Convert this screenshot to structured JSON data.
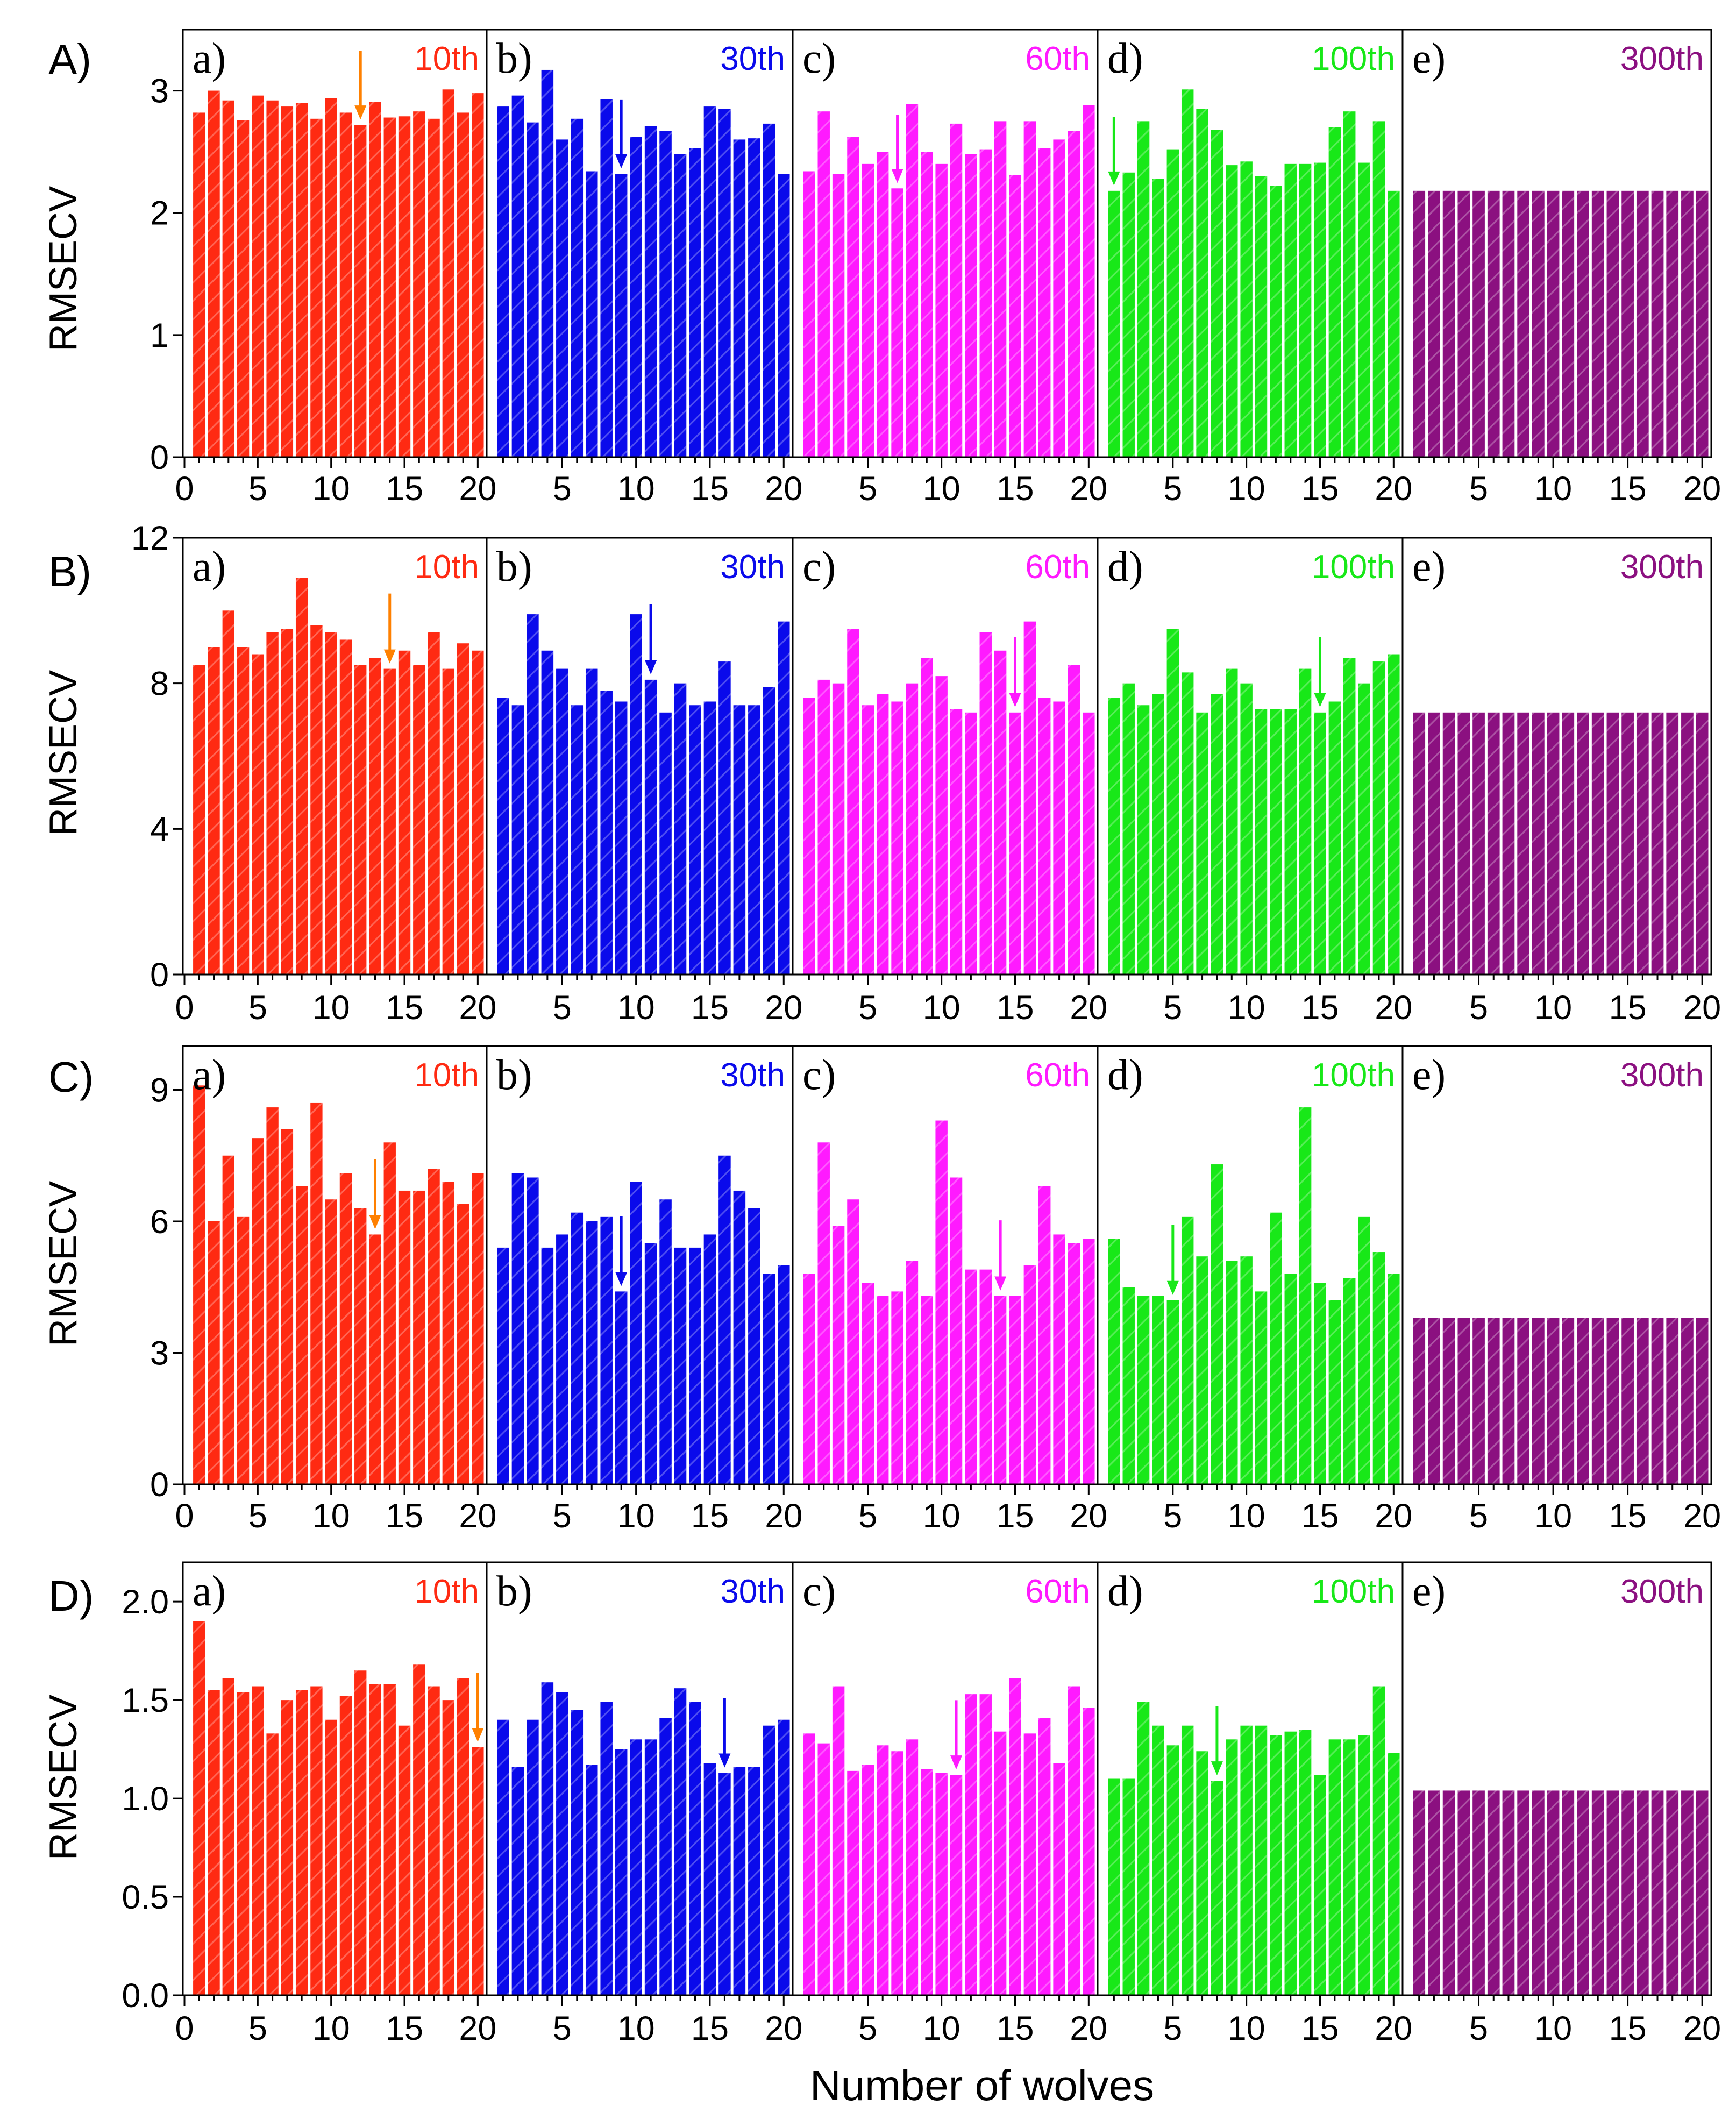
{
  "figure": {
    "xlabel": "Number of wolves",
    "ylabel": "RMSECV",
    "xticks": [
      "0",
      "5",
      "10",
      "15",
      "20"
    ],
    "xticks_rest": [
      "5",
      "10",
      "15",
      "20"
    ]
  },
  "chart_data": [
    {
      "type": "bar",
      "row_label": "A)",
      "ylabel": "RMSECV",
      "ylim": [
        0,
        3.5
      ],
      "yticks": [
        0,
        1,
        2,
        3
      ],
      "ytick_labels": [
        "0",
        "1",
        "2",
        "3"
      ],
      "x": [
        1,
        2,
        3,
        4,
        5,
        6,
        7,
        8,
        9,
        10,
        11,
        12,
        13,
        14,
        15,
        16,
        17,
        18,
        19,
        20
      ],
      "panels": [
        {
          "sub_label": "a)",
          "iteration": "10th",
          "color": "#ff2a12",
          "arrow_color": "#ff8000",
          "arrow_at": 12,
          "values": [
            2.82,
            3.0,
            2.92,
            2.76,
            2.96,
            2.92,
            2.87,
            2.9,
            2.77,
            2.94,
            2.82,
            2.72,
            2.91,
            2.78,
            2.79,
            2.83,
            2.77,
            3.01,
            2.82,
            2.98
          ]
        },
        {
          "sub_label": "b)",
          "iteration": "30th",
          "color": "#0a0aeb",
          "arrow_color": "#0a0aeb",
          "arrow_at": 9,
          "values": [
            2.87,
            2.96,
            2.74,
            3.17,
            2.6,
            2.77,
            2.34,
            2.93,
            2.32,
            2.62,
            2.71,
            2.67,
            2.48,
            2.53,
            2.87,
            2.85,
            2.6,
            2.61,
            2.73,
            2.32
          ]
        },
        {
          "sub_label": "c)",
          "iteration": "60th",
          "color": "#ff1aff",
          "arrow_color": "#ff1aff",
          "arrow_at": 7,
          "values": [
            2.34,
            2.83,
            2.32,
            2.62,
            2.4,
            2.5,
            2.2,
            2.89,
            2.5,
            2.4,
            2.73,
            2.48,
            2.52,
            2.75,
            2.31,
            2.75,
            2.53,
            2.6,
            2.67,
            2.88
          ]
        },
        {
          "sub_label": "d)",
          "iteration": "100th",
          "color": "#18e818",
          "arrow_color": "#18e818",
          "arrow_at": 1,
          "values": [
            2.18,
            2.33,
            2.75,
            2.28,
            2.52,
            3.01,
            2.85,
            2.68,
            2.39,
            2.42,
            2.3,
            2.22,
            2.4,
            2.4,
            2.41,
            2.7,
            2.83,
            2.41,
            2.75,
            2.18
          ]
        },
        {
          "sub_label": "e)",
          "iteration": "300th",
          "color": "#8b1080",
          "arrow_color": null,
          "arrow_at": null,
          "values": [
            2.18,
            2.18,
            2.18,
            2.18,
            2.18,
            2.18,
            2.18,
            2.18,
            2.18,
            2.18,
            2.18,
            2.18,
            2.18,
            2.18,
            2.18,
            2.18,
            2.18,
            2.18,
            2.18,
            2.18
          ]
        }
      ]
    },
    {
      "type": "bar",
      "row_label": "B)",
      "ylabel": "RMSECV",
      "ylim": [
        0,
        12
      ],
      "yticks": [
        0,
        4,
        8,
        12
      ],
      "ytick_labels": [
        "0",
        "4",
        "8",
        "12"
      ],
      "x": [
        1,
        2,
        3,
        4,
        5,
        6,
        7,
        8,
        9,
        10,
        11,
        12,
        13,
        14,
        15,
        16,
        17,
        18,
        19,
        20
      ],
      "panels": [
        {
          "sub_label": "a)",
          "iteration": "10th",
          "color": "#ff2a12",
          "arrow_color": "#ff8000",
          "arrow_at": 14,
          "values": [
            8.5,
            9.0,
            10.0,
            9.0,
            8.8,
            9.4,
            9.5,
            10.9,
            9.6,
            9.4,
            9.2,
            8.5,
            8.7,
            8.4,
            8.9,
            8.5,
            9.4,
            8.4,
            9.1,
            8.9
          ]
        },
        {
          "sub_label": "b)",
          "iteration": "30th",
          "color": "#0a0aeb",
          "arrow_color": "#0a0aeb",
          "arrow_at": 11,
          "values": [
            7.6,
            7.4,
            9.9,
            8.9,
            8.4,
            7.4,
            8.4,
            7.8,
            7.5,
            9.9,
            8.1,
            7.2,
            8.0,
            7.4,
            7.5,
            8.6,
            7.4,
            7.4,
            7.9,
            9.7
          ]
        },
        {
          "sub_label": "c)",
          "iteration": "60th",
          "color": "#ff1aff",
          "arrow_color": "#ff1aff",
          "arrow_at": 15,
          "values": [
            7.6,
            8.1,
            8.0,
            9.5,
            7.4,
            7.7,
            7.5,
            8.0,
            8.7,
            8.2,
            7.3,
            7.2,
            9.4,
            8.9,
            7.2,
            9.7,
            7.6,
            7.5,
            8.5,
            7.2
          ]
        },
        {
          "sub_label": "d)",
          "iteration": "100th",
          "color": "#18e818",
          "arrow_color": "#18e818",
          "arrow_at": 15,
          "values": [
            7.6,
            8.0,
            7.4,
            7.7,
            9.5,
            8.3,
            7.2,
            7.7,
            8.4,
            8.0,
            7.3,
            7.3,
            7.3,
            8.4,
            7.2,
            7.5,
            8.7,
            8.0,
            8.6,
            8.8
          ]
        },
        {
          "sub_label": "e)",
          "iteration": "300th",
          "color": "#8b1080",
          "arrow_color": null,
          "arrow_at": null,
          "values": [
            7.2,
            7.2,
            7.2,
            7.2,
            7.2,
            7.2,
            7.2,
            7.2,
            7.2,
            7.2,
            7.2,
            7.2,
            7.2,
            7.2,
            7.2,
            7.2,
            7.2,
            7.2,
            7.2,
            7.2
          ]
        }
      ]
    },
    {
      "type": "bar",
      "row_label": "C)",
      "ylabel": "RMSECV",
      "ylim": [
        0,
        10
      ],
      "yticks": [
        0,
        3,
        6,
        9
      ],
      "ytick_labels": [
        "0",
        "3",
        "6",
        "9"
      ],
      "x": [
        1,
        2,
        3,
        4,
        5,
        6,
        7,
        8,
        9,
        10,
        11,
        12,
        13,
        14,
        15,
        16,
        17,
        18,
        19,
        20
      ],
      "panels": [
        {
          "sub_label": "a)",
          "iteration": "10th",
          "color": "#ff2a12",
          "arrow_color": "#ff8000",
          "arrow_at": 13,
          "values": [
            9.1,
            6.0,
            7.5,
            6.1,
            7.9,
            8.6,
            8.1,
            6.8,
            8.7,
            6.5,
            7.1,
            6.3,
            5.7,
            7.8,
            6.7,
            6.7,
            7.2,
            6.9,
            6.4,
            7.1
          ]
        },
        {
          "sub_label": "b)",
          "iteration": "30th",
          "color": "#0a0aeb",
          "arrow_color": "#0a0aeb",
          "arrow_at": 9,
          "values": [
            5.4,
            7.1,
            7.0,
            5.4,
            5.7,
            6.2,
            6.0,
            6.1,
            4.4,
            6.9,
            5.5,
            6.5,
            5.4,
            5.4,
            5.7,
            7.5,
            6.7,
            6.3,
            4.8,
            5.0
          ]
        },
        {
          "sub_label": "c)",
          "iteration": "60th",
          "color": "#ff1aff",
          "arrow_color": "#ff1aff",
          "arrow_at": 14,
          "values": [
            4.8,
            7.8,
            5.9,
            6.5,
            4.6,
            4.3,
            4.4,
            5.1,
            4.3,
            8.3,
            7.0,
            4.9,
            4.9,
            4.3,
            4.3,
            5.0,
            6.8,
            5.7,
            5.5,
            5.6
          ]
        },
        {
          "sub_label": "d)",
          "iteration": "100th",
          "color": "#18e818",
          "arrow_color": "#18e818",
          "arrow_at": 5,
          "values": [
            5.6,
            4.5,
            4.3,
            4.3,
            4.2,
            6.1,
            5.2,
            7.3,
            5.1,
            5.2,
            4.4,
            6.2,
            4.8,
            8.6,
            4.6,
            4.2,
            4.7,
            6.1,
            5.3,
            4.8
          ]
        },
        {
          "sub_label": "e)",
          "iteration": "300th",
          "color": "#8b1080",
          "arrow_color": null,
          "arrow_at": null,
          "values": [
            3.8,
            3.8,
            3.8,
            3.8,
            3.8,
            3.8,
            3.8,
            3.8,
            3.8,
            3.8,
            3.8,
            3.8,
            3.8,
            3.8,
            3.8,
            3.8,
            3.8,
            3.8,
            3.8,
            3.8
          ]
        }
      ]
    },
    {
      "type": "bar",
      "row_label": "D)",
      "ylabel": "RMSECV",
      "ylim": [
        0,
        2.2
      ],
      "yticks": [
        0,
        0.5,
        1.0,
        1.5,
        2.0
      ],
      "ytick_labels": [
        "0.0",
        "0.5",
        "1.0",
        "1.5",
        "2.0"
      ],
      "x": [
        1,
        2,
        3,
        4,
        5,
        6,
        7,
        8,
        9,
        10,
        11,
        12,
        13,
        14,
        15,
        16,
        17,
        18,
        19,
        20
      ],
      "panels": [
        {
          "sub_label": "a)",
          "iteration": "10th",
          "color": "#ff2a12",
          "arrow_color": "#ff8000",
          "arrow_at": 20,
          "values": [
            1.9,
            1.55,
            1.61,
            1.54,
            1.57,
            1.33,
            1.5,
            1.55,
            1.57,
            1.4,
            1.52,
            1.65,
            1.58,
            1.58,
            1.37,
            1.68,
            1.57,
            1.5,
            1.61,
            1.26
          ]
        },
        {
          "sub_label": "b)",
          "iteration": "30th",
          "color": "#0a0aeb",
          "arrow_color": "#0a0aeb",
          "arrow_at": 16,
          "values": [
            1.4,
            1.16,
            1.4,
            1.59,
            1.54,
            1.45,
            1.17,
            1.49,
            1.25,
            1.3,
            1.3,
            1.41,
            1.56,
            1.49,
            1.18,
            1.13,
            1.16,
            1.16,
            1.37,
            1.4
          ]
        },
        {
          "sub_label": "c)",
          "iteration": "60th",
          "color": "#ff1aff",
          "arrow_color": "#ff1aff",
          "arrow_at": 11,
          "values": [
            1.33,
            1.28,
            1.57,
            1.14,
            1.17,
            1.27,
            1.24,
            1.3,
            1.15,
            1.13,
            1.12,
            1.53,
            1.53,
            1.34,
            1.61,
            1.33,
            1.41,
            1.18,
            1.57,
            1.46
          ]
        },
        {
          "sub_label": "d)",
          "iteration": "100th",
          "color": "#18e818",
          "arrow_color": "#18e818",
          "arrow_at": 8,
          "values": [
            1.1,
            1.1,
            1.49,
            1.37,
            1.27,
            1.37,
            1.24,
            1.09,
            1.3,
            1.37,
            1.37,
            1.32,
            1.34,
            1.35,
            1.12,
            1.3,
            1.3,
            1.32,
            1.57,
            1.23
          ]
        },
        {
          "sub_label": "e)",
          "iteration": "300th",
          "color": "#8b1080",
          "arrow_color": null,
          "arrow_at": null,
          "values": [
            1.04,
            1.04,
            1.04,
            1.04,
            1.04,
            1.04,
            1.04,
            1.04,
            1.04,
            1.04,
            1.04,
            1.04,
            1.04,
            1.04,
            1.04,
            1.04,
            1.04,
            1.04,
            1.04,
            1.04
          ]
        }
      ]
    }
  ]
}
